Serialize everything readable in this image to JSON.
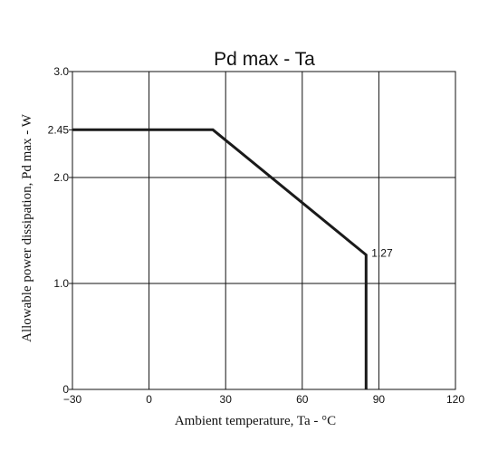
{
  "chart_data": {
    "type": "line",
    "title": "Pd max  -  Ta",
    "xlabel": "Ambient temperature, Ta - °C",
    "ylabel": "Allowable power dissipation, Pd max - W",
    "xlim": [
      -30,
      120
    ],
    "ylim": [
      0,
      3.0
    ],
    "xticks": [
      -30,
      0,
      30,
      60,
      90,
      120
    ],
    "xtick_labels": [
      "−30",
      "0",
      "30",
      "60",
      "90",
      "120"
    ],
    "yticks": [
      0,
      1.0,
      2.0,
      2.45,
      3.0
    ],
    "ytick_labels": [
      "0",
      "1.0",
      "2.0",
      "2.45",
      "3.0"
    ],
    "grid": true,
    "series": [
      {
        "points": [
          [
            -30,
            2.45
          ],
          [
            25,
            2.45
          ],
          [
            85,
            1.27
          ],
          [
            85,
            0
          ]
        ],
        "color": "#1a1a1a"
      }
    ],
    "annotations": [
      {
        "text": "1.27",
        "x": 85,
        "y": 1.27
      }
    ]
  }
}
